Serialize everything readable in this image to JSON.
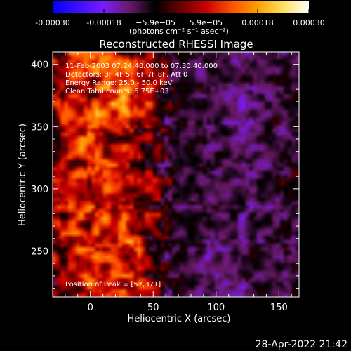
{
  "colorbar": {
    "ticks": [
      "-0.00030",
      "-0.00018",
      "−5.9e−05",
      "5.9e−05",
      "0.00018",
      "0.00030"
    ],
    "tick_values": [
      -0.0003,
      -0.00018,
      -5.9e-05,
      5.9e-05,
      0.00018,
      0.0003
    ],
    "range": [
      -0.0003,
      0.0003
    ],
    "units_label": "(photons cm⁻² s⁻¹ asec⁻²)",
    "stops": [
      "#0000ff",
      "#3c10ff",
      "#7a1aff",
      "#6a1a6a",
      "#000000",
      "#6a0000",
      "#cc0000",
      "#ff5000",
      "#ffa000",
      "#ffe060",
      "#ffffff"
    ]
  },
  "chart_data": {
    "type": "heatmap",
    "title": "Reconstructed RHESSI Image",
    "xlabel": "Heliocentric X (arcsec)",
    "ylabel": "Heliocentric Y (arcsec)",
    "xlim": [
      -30,
      166
    ],
    "ylim": [
      213,
      410
    ],
    "xticks": [
      0,
      50,
      100,
      150
    ],
    "yticks": [
      250,
      300,
      350,
      400
    ],
    "annotations": [
      "11-Feb-2003 07:24:40.000 to 07:30:40.000",
      "Detectors: 3F 4F 5F 6F 7F 8F, Att 0",
      "Energy Range: 25.0 - 50.0 keV",
      "Clean    Total counts: 6.75E+03"
    ],
    "peak_label": "Position of Peak = [57,371]",
    "peak": [
      57,
      371
    ]
  },
  "footer": {
    "timestamp": "28-Apr-2022 21:42"
  }
}
